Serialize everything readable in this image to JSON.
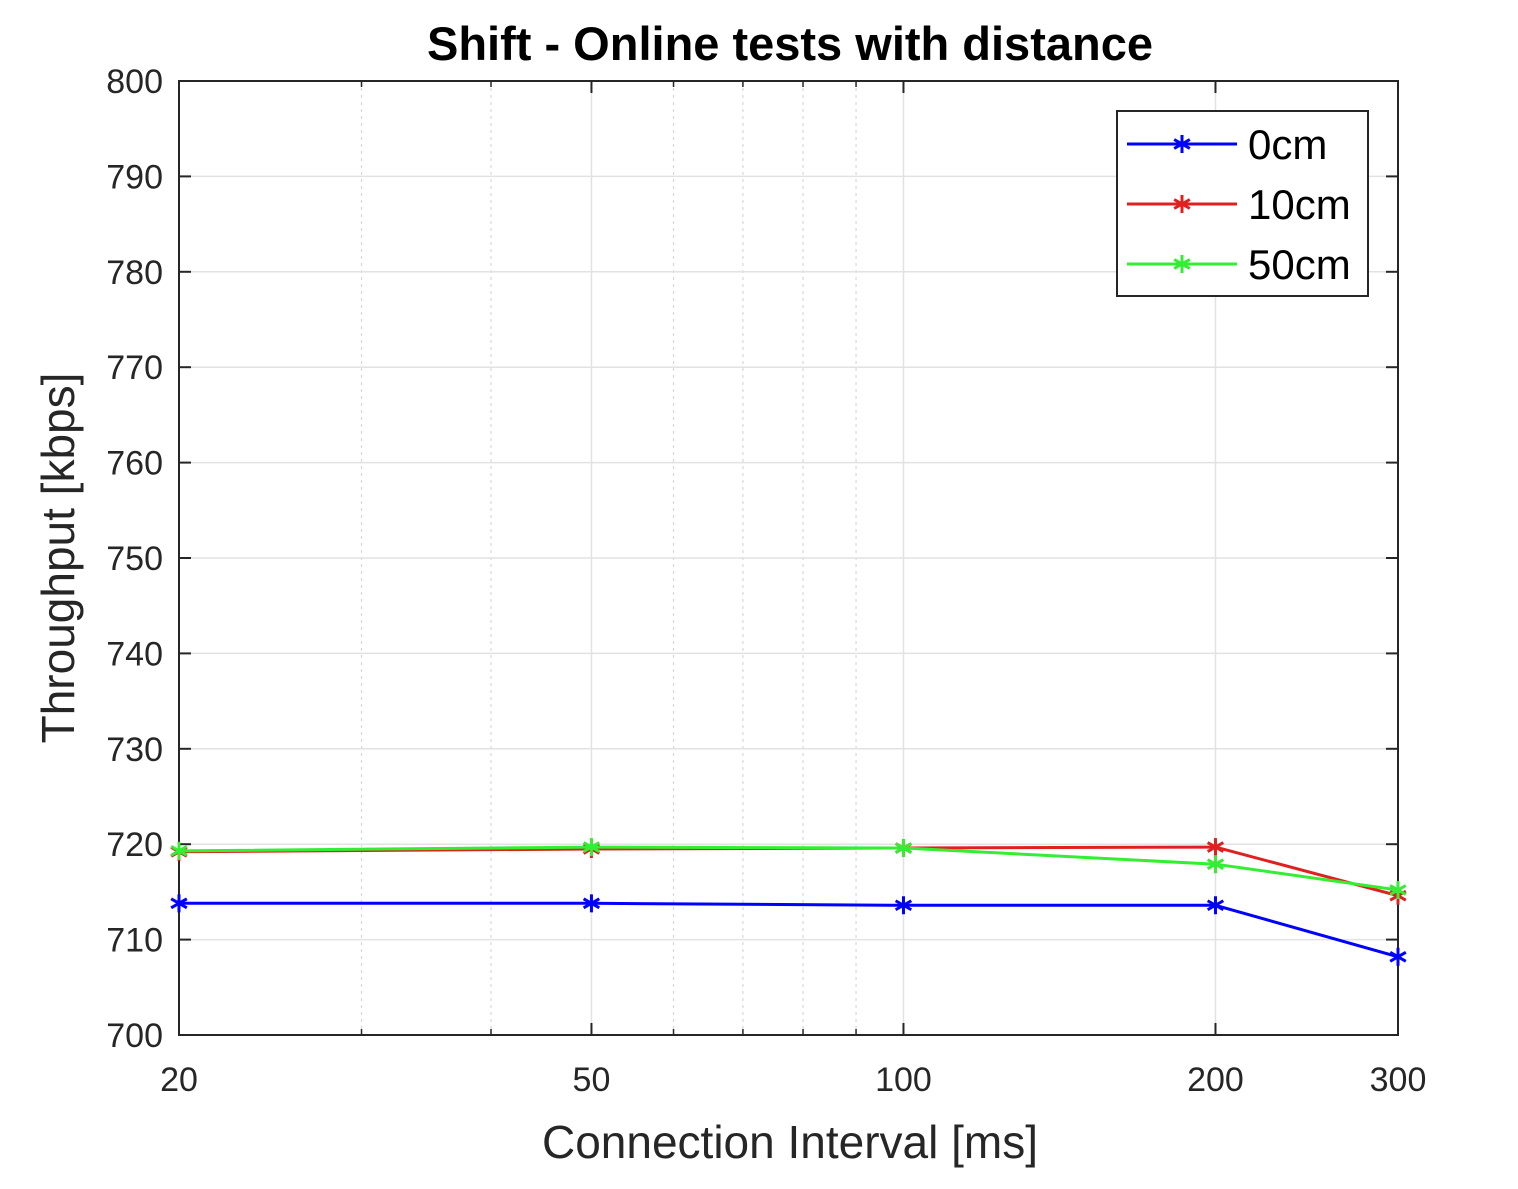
{
  "chart_data": {
    "type": "line",
    "title": "Shift - Online tests with distance",
    "xlabel": "Connection Interval [ms]",
    "ylabel": "Throughput [kbps]",
    "xscale": "log",
    "xlim": [
      20,
      300
    ],
    "ylim": [
      700,
      800
    ],
    "x": [
      20,
      50,
      100,
      200,
      300
    ],
    "xticks": [
      20,
      50,
      100,
      200,
      300
    ],
    "xtick_labels": [
      "20",
      "50",
      "100",
      "200",
      "300"
    ],
    "xminor_ticks": [
      30,
      40,
      60,
      70,
      80,
      90
    ],
    "yticks": [
      700,
      710,
      720,
      730,
      740,
      750,
      760,
      770,
      780,
      790,
      800
    ],
    "ytick_labels": [
      "700",
      "710",
      "720",
      "730",
      "740",
      "750",
      "760",
      "770",
      "780",
      "790",
      "800"
    ],
    "grid": true,
    "minor_grid": true,
    "legend_position": "top-right",
    "marker": "asterisk",
    "series": [
      {
        "name": "0cm",
        "color": "#0000ff",
        "values": [
          713.8,
          713.8,
          713.6,
          713.6,
          708.2
        ]
      },
      {
        "name": "10cm",
        "color": "#e02020",
        "values": [
          719.2,
          719.5,
          719.6,
          719.7,
          714.6
        ]
      },
      {
        "name": "50cm",
        "color": "#33ee33",
        "values": [
          719.3,
          719.7,
          719.6,
          717.9,
          715.2
        ]
      }
    ]
  }
}
